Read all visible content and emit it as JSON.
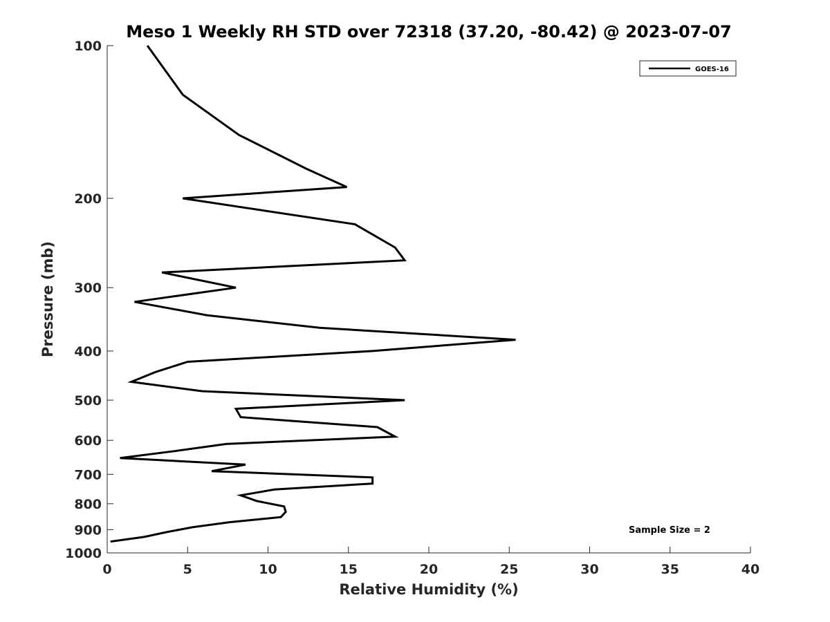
{
  "chart_data": {
    "type": "line",
    "title": "Meso 1 Weekly RH STD over 72318 (37.20, -80.42) @ 2023-07-07",
    "xlabel": "Relative Humidity (%)",
    "ylabel": "Pressure (mb)",
    "xlim": [
      0,
      40
    ],
    "ylim": [
      100,
      1000
    ],
    "y_scale": "log",
    "y_reversed": true,
    "x_ticks": [
      0,
      5,
      10,
      15,
      20,
      25,
      30,
      35,
      40
    ],
    "y_ticks": [
      100,
      200,
      300,
      400,
      500,
      600,
      700,
      800,
      900,
      1000
    ],
    "grid": false,
    "legend_position": "top-right",
    "line_color": "#000000",
    "series": [
      {
        "name": "GOES-16",
        "points": [
          [
            2.5,
            100
          ],
          [
            4.7,
            125
          ],
          [
            8.2,
            150
          ],
          [
            12.4,
            175
          ],
          [
            14.9,
            190
          ],
          [
            4.7,
            200
          ],
          [
            15.4,
            225
          ],
          [
            17.9,
            250
          ],
          [
            18.5,
            265
          ],
          [
            3.4,
            280
          ],
          [
            8.0,
            300
          ],
          [
            1.7,
            320
          ],
          [
            6.2,
            340
          ],
          [
            13.2,
            360
          ],
          [
            25.4,
            380
          ],
          [
            16.5,
            400
          ],
          [
            5.0,
            420
          ],
          [
            3.0,
            440
          ],
          [
            1.5,
            460
          ],
          [
            5.9,
            480
          ],
          [
            18.5,
            500
          ],
          [
            8.0,
            520
          ],
          [
            8.3,
            540
          ],
          [
            16.8,
            565
          ],
          [
            17.9,
            590
          ],
          [
            7.4,
            610
          ],
          [
            4.2,
            630
          ],
          [
            0.8,
            650
          ],
          [
            8.6,
            670
          ],
          [
            6.5,
            690
          ],
          [
            16.5,
            710
          ],
          [
            16.5,
            730
          ],
          [
            10.4,
            750
          ],
          [
            8.3,
            770
          ],
          [
            9.3,
            790
          ],
          [
            11.0,
            810
          ],
          [
            11.1,
            830
          ],
          [
            10.8,
            850
          ],
          [
            7.6,
            870
          ],
          [
            5.3,
            890
          ],
          [
            3.7,
            910
          ],
          [
            2.3,
            930
          ],
          [
            0.2,
            950
          ]
        ]
      }
    ],
    "annotation": "Sample Size = 2"
  }
}
